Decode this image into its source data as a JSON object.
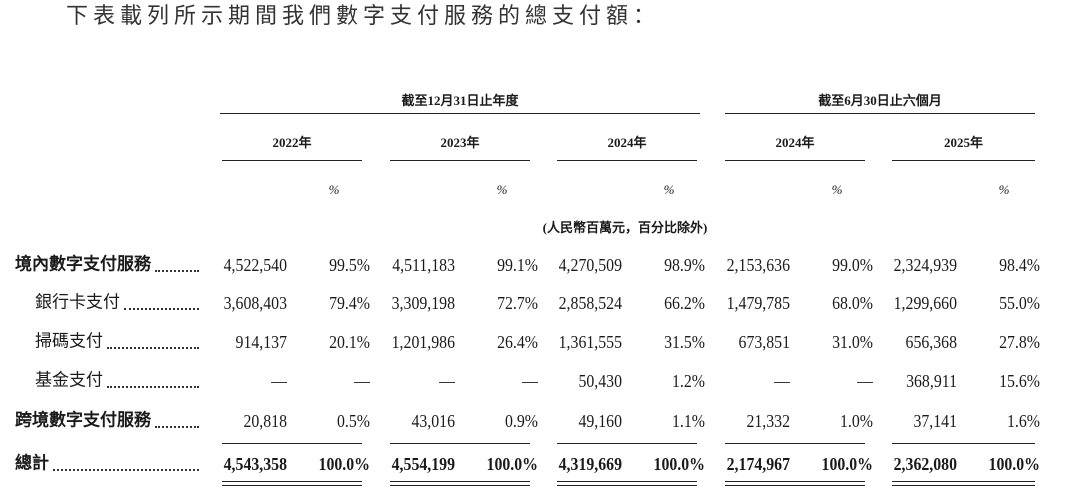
{
  "title": "下表載列所示期間我們數字支付服務的總支付額：",
  "header": {
    "groups": [
      "截至12月31日止年度",
      "截至6月30日止六個月"
    ],
    "years": [
      "2022年",
      "2023年",
      "2024年",
      "2024年",
      "2025年"
    ],
    "pct_label": "%",
    "unit_note": "(人民幣百萬元，百分比除外)"
  },
  "rows": [
    {
      "label": "境內數字支付服務",
      "cells": [
        "4,522,540",
        "99.5%",
        "4,511,183",
        "99.1%",
        "4,270,509",
        "98.9%",
        "2,153,636",
        "99.0%",
        "2,324,939",
        "98.4%"
      ]
    },
    {
      "label": "銀行卡支付",
      "cells": [
        "3,608,403",
        "79.4%",
        "3,309,198",
        "72.7%",
        "2,858,524",
        "66.2%",
        "1,479,785",
        "68.0%",
        "1,299,660",
        "55.0%"
      ]
    },
    {
      "label": "掃碼支付",
      "cells": [
        "914,137",
        "20.1%",
        "1,201,986",
        "26.4%",
        "1,361,555",
        "31.5%",
        "673,851",
        "31.0%",
        "656,368",
        "27.8%"
      ]
    },
    {
      "label": "基金支付",
      "cells": [
        "—",
        "—",
        "—",
        "—",
        "50,430",
        "1.2%",
        "—",
        "—",
        "368,911",
        "15.6%"
      ]
    },
    {
      "label": "跨境數字支付服務",
      "cells": [
        "20,818",
        "0.5%",
        "43,016",
        "0.9%",
        "49,160",
        "1.1%",
        "21,332",
        "1.0%",
        "37,141",
        "1.6%"
      ]
    },
    {
      "label": "總計",
      "cells": [
        "4,543,358",
        "100.0%",
        "4,554,199",
        "100.0%",
        "4,319,669",
        "100.0%",
        "2,174,967",
        "100.0%",
        "2,362,080",
        "100.0%"
      ]
    }
  ]
}
